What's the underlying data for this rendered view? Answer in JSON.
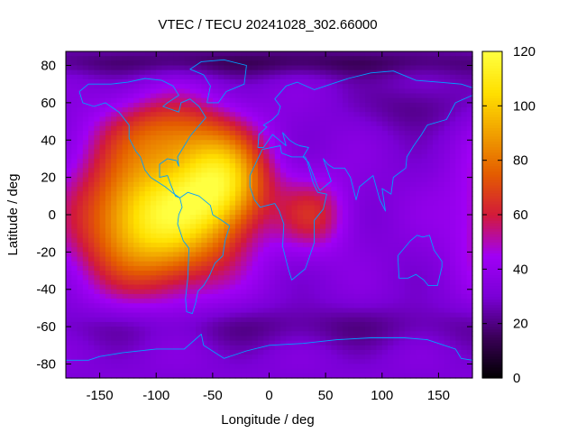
{
  "chart_data": {
    "type": "heatmap",
    "title": "VTEC / TECU 20241028_302.66000",
    "xlabel": "Longitude / deg",
    "ylabel": "Latitude / deg",
    "xlim": [
      -180,
      180
    ],
    "ylim": [
      -87.5,
      87.5
    ],
    "x_ticks": [
      -150,
      -100,
      -50,
      0,
      50,
      100,
      150
    ],
    "y_ticks": [
      -80,
      -60,
      -40,
      -20,
      0,
      20,
      40,
      60,
      80
    ],
    "colorbar": {
      "min": 0,
      "max": 120,
      "ticks": [
        0,
        20,
        40,
        60,
        80,
        100,
        120
      ],
      "palette": [
        "#000000",
        "#3a0057",
        "#7a00d6",
        "#a000f5",
        "#d21a3a",
        "#e45c00",
        "#f0a000",
        "#ffe000",
        "#ffff40"
      ]
    },
    "background_tecu": 32,
    "features": [
      {
        "lon": -100,
        "lat": -2,
        "sigma_lon": 48,
        "sigma_lat": 26,
        "amp": 80
      },
      {
        "lon": -40,
        "lat": 18,
        "sigma_lon": 28,
        "sigma_lat": 18,
        "amp": 55
      },
      {
        "lon": 40,
        "lat": 0,
        "sigma_lon": 22,
        "sigma_lat": 14,
        "amp": 28
      },
      {
        "lon": -90,
        "lat": 45,
        "sigma_lon": 40,
        "sigma_lat": 14,
        "amp": 30
      },
      {
        "lon": 0,
        "lat": 82,
        "sigma_lon": 200,
        "sigma_lat": 6,
        "amp": -16
      },
      {
        "lon": 130,
        "lat": 58,
        "sigma_lon": 30,
        "sigma_lat": 10,
        "amp": -12
      },
      {
        "lon": 0,
        "lat": -60,
        "sigma_lon": 200,
        "sigma_lat": 8,
        "amp": -10
      }
    ],
    "coastline_color": "#00a0ff"
  }
}
